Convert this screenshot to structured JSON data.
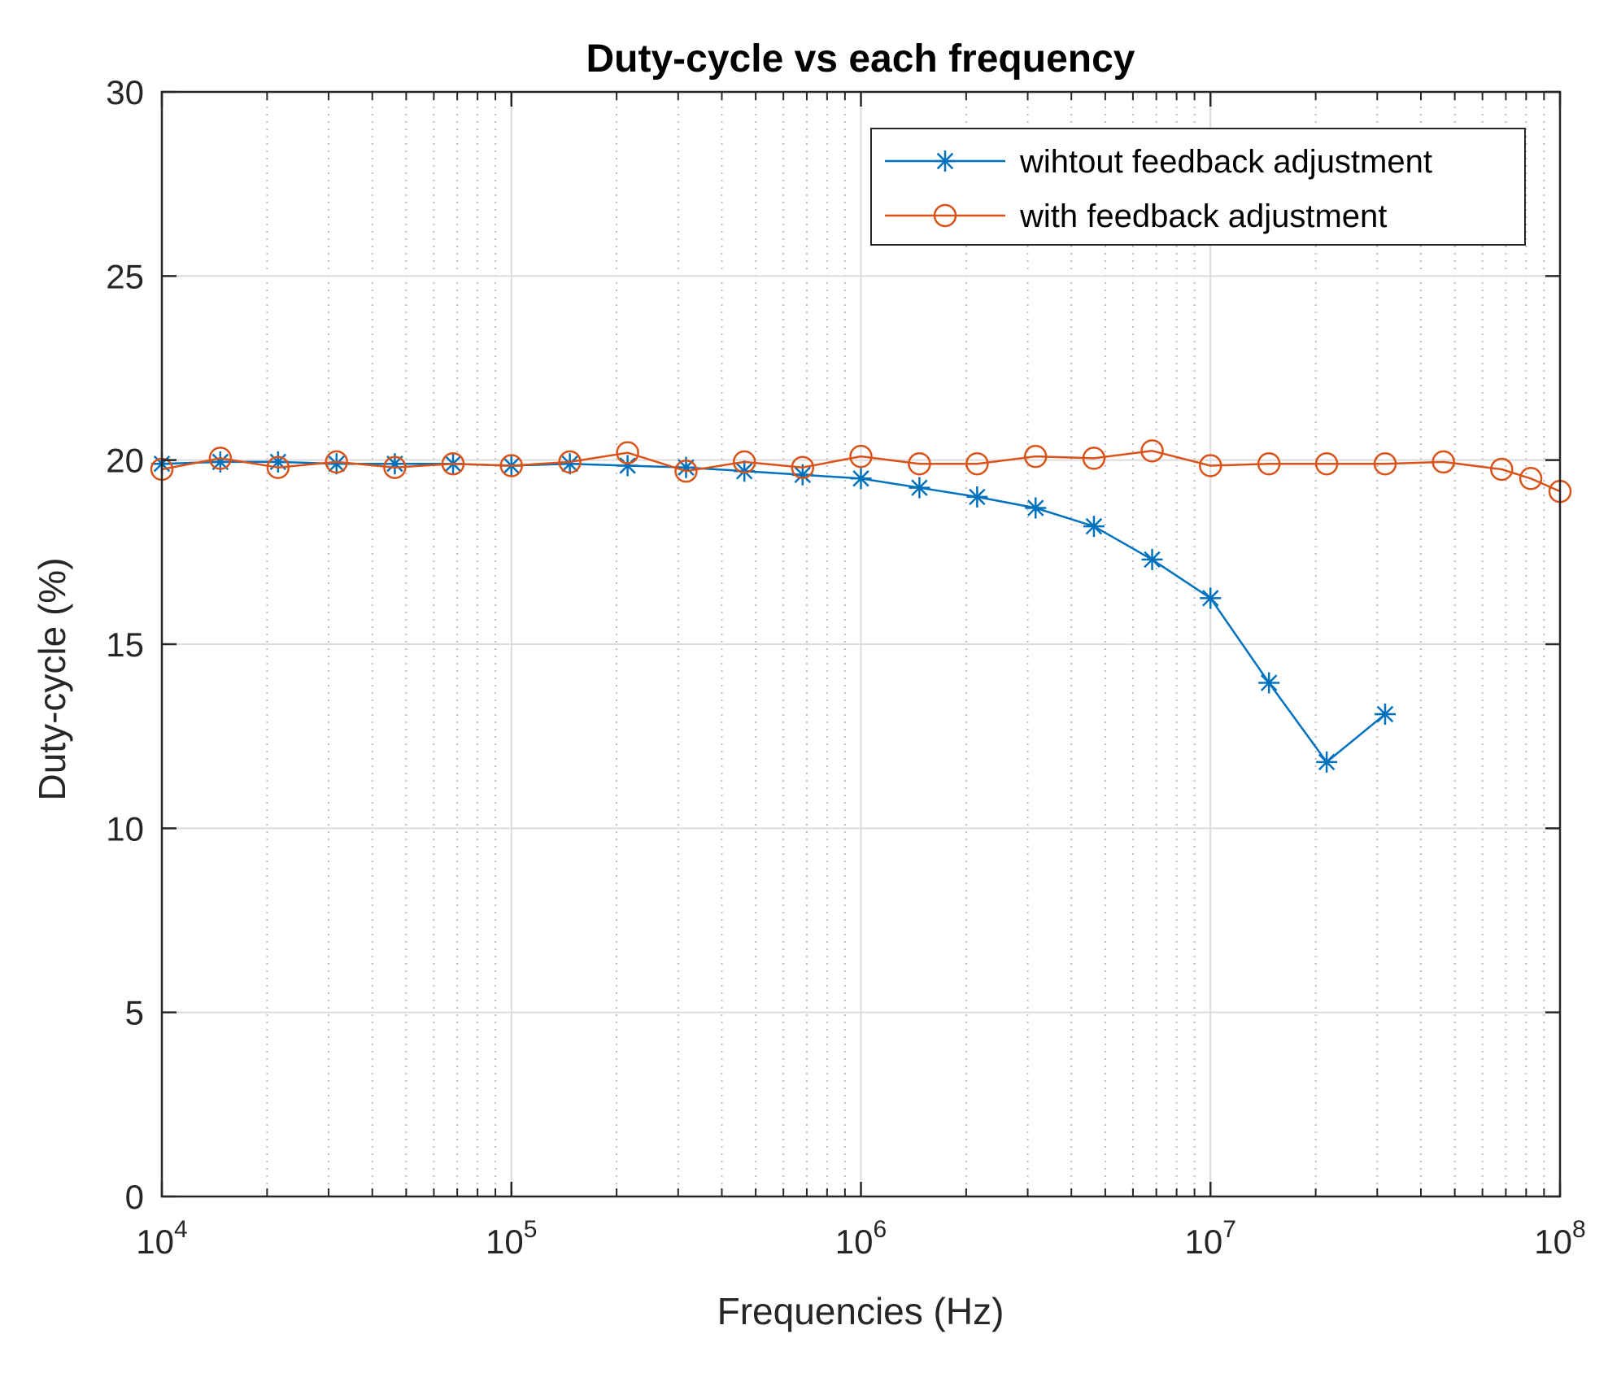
{
  "chart_data": {
    "type": "line",
    "title": "Duty-cycle vs each frequency",
    "xlabel": "Frequencies (Hz)",
    "ylabel": "Duty-cycle (%)",
    "xscale": "log",
    "xlim": [
      10000,
      100000000
    ],
    "ylim": [
      0,
      30
    ],
    "grid": true,
    "legend_position": "top-right",
    "xticks": [
      {
        "value": 10000,
        "base": "10",
        "exp": "4"
      },
      {
        "value": 100000,
        "base": "10",
        "exp": "5"
      },
      {
        "value": 1000000,
        "base": "10",
        "exp": "6"
      },
      {
        "value": 10000000,
        "base": "10",
        "exp": "7"
      },
      {
        "value": 100000000,
        "base": "10",
        "exp": "8"
      }
    ],
    "yticks": [
      "0",
      "5",
      "10",
      "15",
      "20",
      "25",
      "30"
    ],
    "series": [
      {
        "name": "wihtout feedback adjustment",
        "color": "#0072BD",
        "marker": "asterisk",
        "x": [
          10000,
          14700,
          21500,
          31600,
          46400,
          68100,
          100000,
          147000,
          215000,
          316000,
          464000,
          681000,
          1000000,
          1470000,
          2150000,
          3160000,
          4640000,
          6810000,
          10000000,
          14700000,
          21500000,
          31600000
        ],
        "y": [
          19.9,
          19.95,
          19.95,
          19.9,
          19.9,
          19.9,
          19.85,
          19.9,
          19.85,
          19.8,
          19.7,
          19.6,
          19.5,
          19.25,
          19.0,
          18.7,
          18.2,
          17.3,
          16.25,
          13.95,
          11.8,
          13.1
        ]
      },
      {
        "name": "with feedback adjustment",
        "color": "#D95319",
        "marker": "circle",
        "x": [
          10000,
          14700,
          21500,
          31600,
          46400,
          68100,
          100000,
          147000,
          215000,
          316000,
          464000,
          681000,
          1000000,
          1470000,
          2150000,
          3160000,
          4640000,
          6810000,
          10000000,
          14700000,
          21500000,
          31600000,
          46400000,
          68100000,
          82500000,
          100000000
        ],
        "y": [
          19.75,
          20.05,
          19.8,
          19.95,
          19.8,
          19.9,
          19.85,
          19.95,
          20.2,
          19.7,
          19.95,
          19.8,
          20.1,
          19.9,
          19.9,
          20.1,
          20.05,
          20.25,
          19.85,
          19.9,
          19.9,
          19.9,
          19.95,
          19.75,
          19.5,
          19.15
        ]
      }
    ]
  }
}
